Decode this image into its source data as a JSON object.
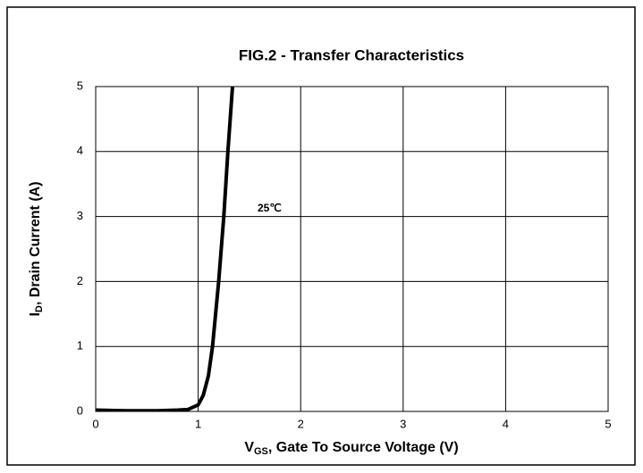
{
  "chart_data": {
    "type": "line",
    "title": "FIG.2 - Transfer Characteristics",
    "xlabel": [
      "V",
      "GS",
      ", Gate To Source Voltage (V)"
    ],
    "ylabel": [
      "I",
      "D",
      ", Drain Current (A)"
    ],
    "annotation": "25℃",
    "x": [
      0,
      0.3,
      0.6,
      0.8,
      0.9,
      1.0,
      1.05,
      1.1,
      1.14,
      1.2,
      1.25,
      1.29,
      1.335
    ],
    "series": [
      {
        "color": "#000000",
        "values": [
          0.02,
          0.01,
          0.01,
          0.02,
          0.03,
          0.1,
          0.25,
          0.55,
          1.0,
          2.0,
          3.0,
          4.0,
          5.0
        ]
      }
    ],
    "xlim": [
      0,
      5
    ],
    "xticks": [
      0,
      1,
      2,
      3,
      4,
      5
    ],
    "ylim": [
      0,
      5
    ],
    "yticks": [
      0,
      1,
      2,
      3,
      4,
      5
    ],
    "grid": true
  }
}
